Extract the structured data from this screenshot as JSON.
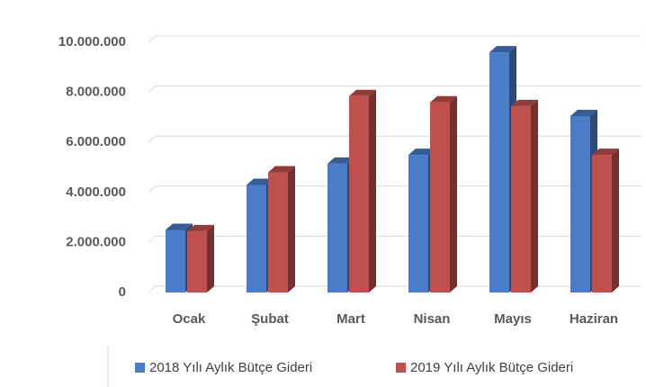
{
  "chart_data": {
    "type": "bar3d",
    "categories": [
      "Ocak",
      "Şubat",
      "Mart",
      "Nisan",
      "Mayıs",
      "Haziran"
    ],
    "series": [
      {
        "name": "2018 Yılı Aylık Bütçe Gideri",
        "color": "#4a7cc7",
        "values": [
          2500000,
          4300000,
          5150000,
          5500000,
          9600000,
          7050000
        ]
      },
      {
        "name": "2019 Yılı Aylık Bütçe Gideri",
        "color": "#c0504d",
        "values": [
          2450000,
          4800000,
          7850000,
          7600000,
          7450000,
          5500000
        ]
      }
    ],
    "ylim": [
      0,
      10000000
    ],
    "yticks": [
      {
        "value": 0,
        "label": "0"
      },
      {
        "value": 2000000,
        "label": "2.000.000"
      },
      {
        "value": 4000000,
        "label": "4.000.000"
      },
      {
        "value": 6000000,
        "label": "6.000.000"
      },
      {
        "value": 8000000,
        "label": "8.000.000"
      },
      {
        "value": 10000000,
        "label": "10.000.000"
      }
    ],
    "grid": true,
    "legend": "bottom"
  }
}
